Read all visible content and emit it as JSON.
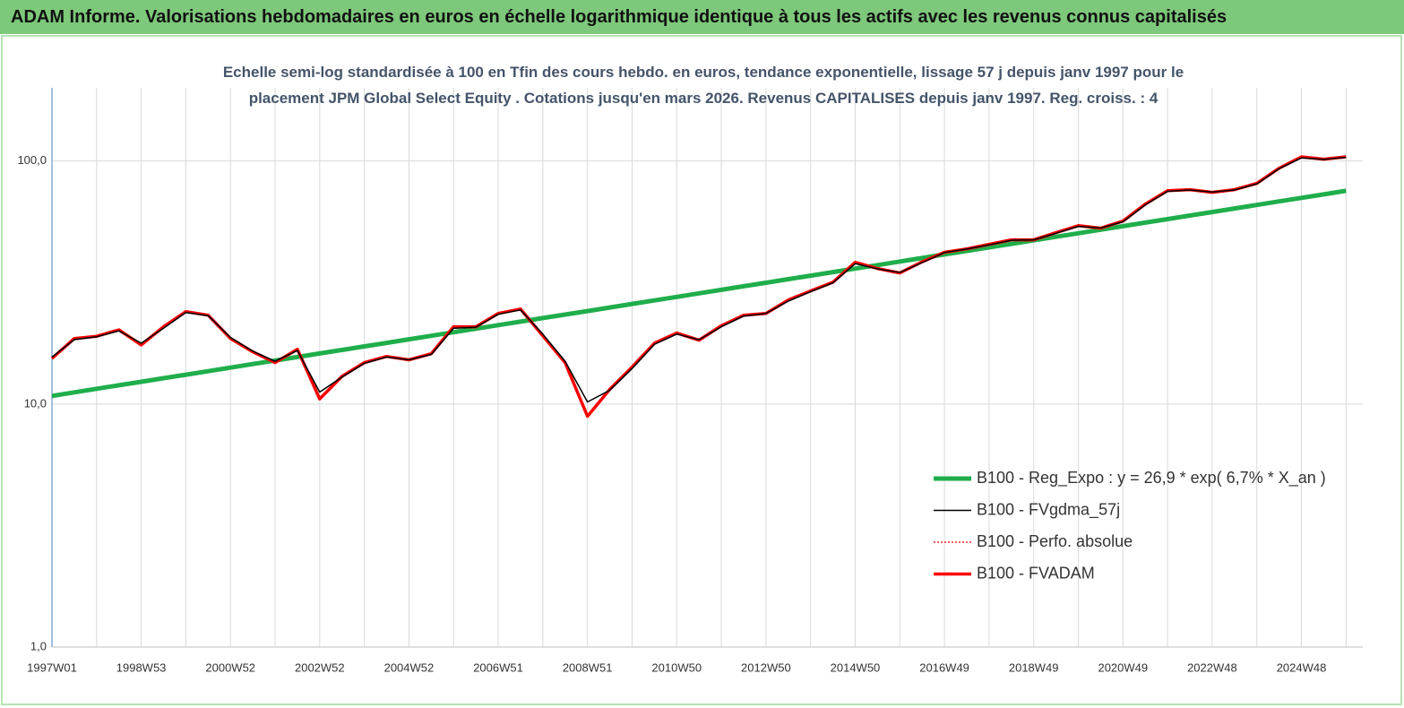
{
  "chart_data": {
    "type": "line",
    "header": "ADAM Informe. Valorisations hebdomadaires en euros en échelle logarithmique identique à tous les actifs avec les revenus connus capitalisés",
    "title": "Echelle semi-log standardisée à 100 en Tfin des cours hebdo. en euros, tendance exponentielle, lissage 57 j depuis janv 1997 pour le placement JPM Global Select Equity . Cotations jusqu'en mars 2026. Revenus CAPITALISES depuis janv 1997. Reg. croiss. : 4",
    "log_scale": true,
    "grid": true,
    "legend": "lower right",
    "ylim": [
      1,
      200
    ],
    "yticks": [
      {
        "value": 1,
        "label": "1,0"
      },
      {
        "value": 10,
        "label": "10,0"
      },
      {
        "value": 100,
        "label": "100,0"
      }
    ],
    "categories": [
      "1997W01",
      null,
      null,
      null,
      "1998W53",
      null,
      null,
      null,
      "2000W52",
      null,
      null,
      null,
      "2002W52",
      null,
      null,
      null,
      "2004W52",
      null,
      null,
      null,
      "2006W51",
      null,
      null,
      null,
      "2008W51",
      null,
      null,
      null,
      "2010W50",
      null,
      null,
      null,
      "2012W50",
      null,
      null,
      null,
      "2014W50",
      null,
      null,
      null,
      "2016W49",
      null,
      null,
      null,
      "2018W49",
      null,
      null,
      null,
      "2020W49",
      null,
      null,
      null,
      "2022W48",
      null,
      null,
      null,
      "2024W48",
      null,
      null
    ],
    "series": [
      {
        "name": "B100 - Reg_Expo : y = 26,9 * exp( 6,7% * X_an )",
        "color": "#1fae4b",
        "width": 5,
        "dash": "none",
        "values": [
          10.8,
          11.17,
          11.55,
          11.94,
          12.35,
          12.77,
          13.2,
          13.65,
          14.12,
          14.6,
          15.1,
          15.61,
          16.14,
          16.69,
          17.26,
          17.85,
          18.46,
          19.09,
          19.74,
          20.41,
          21.11,
          21.83,
          22.57,
          23.34,
          24.13,
          24.96,
          25.81,
          26.69,
          27.59,
          28.53,
          29.51,
          30.51,
          31.55,
          32.63,
          33.74,
          34.89,
          36.07,
          37.3,
          38.57,
          39.89,
          41.25,
          42.65,
          44.11,
          45.61,
          47.16,
          48.77,
          50.43,
          52.15,
          53.93,
          55.76,
          57.66,
          59.63,
          61.66,
          63.76,
          65.93,
          68.18,
          70.5,
          72.9,
          75.39
        ]
      },
      {
        "name": "B100 - FVgdma_57j",
        "color": "#000000",
        "width": 1.5,
        "dash": "none",
        "values": [
          15.6,
          18.4,
          18.9,
          20,
          17.8,
          20.5,
          23.8,
          23.1,
          18.8,
          16.5,
          15,
          16.6,
          11.2,
          12.9,
          14.7,
          15.6,
          15.2,
          16,
          20.5,
          20.7,
          23.4,
          24.4,
          19.4,
          15,
          10.2,
          11.4,
          14,
          17.6,
          19.4,
          18.4,
          20.8,
          23,
          23.6,
          26.5,
          29,
          31.5,
          37.8,
          36,
          34.8,
          38.2,
          42,
          43.4,
          45.2,
          47.2,
          47.4,
          50.4,
          53.8,
          53,
          56.2,
          66,
          75,
          76,
          74.5,
          76,
          80.5,
          93,
          103,
          101.5,
          103.5
        ]
      },
      {
        "name": "B100 - Perfo. absolue",
        "color": "#e00000",
        "width": 1.2,
        "dash": "2 2",
        "values": [
          15.4,
          18.6,
          19,
          20.2,
          17.5,
          20.8,
          24,
          23.2,
          18.6,
          16.4,
          14.8,
          16.8,
          10.5,
          13,
          14.8,
          15.7,
          15.2,
          16.1,
          20.8,
          20.8,
          23.6,
          24.6,
          19.1,
          14.8,
          8.9,
          11.5,
          14.2,
          17.8,
          19.6,
          18.3,
          21,
          23.2,
          23.6,
          26.8,
          29.2,
          31.7,
          38.3,
          36.1,
          34.6,
          38.5,
          42.1,
          43.5,
          45.4,
          47.4,
          47.4,
          50.7,
          54.2,
          52.9,
          56.6,
          66.5,
          75.5,
          76.2,
          74.3,
          76.2,
          80.9,
          93.4,
          104,
          101.7,
          104
        ]
      },
      {
        "name": "B100 - FVADAM",
        "color": "#ff0000",
        "width": 3.5,
        "dash": "none",
        "values": [
          15.4,
          18.6,
          19,
          20.2,
          17.5,
          20.8,
          24,
          23.2,
          18.6,
          16.4,
          14.8,
          16.8,
          10.5,
          13,
          14.8,
          15.7,
          15.2,
          16.1,
          20.8,
          20.8,
          23.6,
          24.6,
          19.1,
          14.8,
          8.9,
          11.5,
          14.2,
          17.8,
          19.6,
          18.3,
          21,
          23.2,
          23.6,
          26.8,
          29.2,
          31.7,
          38.3,
          36.1,
          34.6,
          38.5,
          42.1,
          43.5,
          45.4,
          47.4,
          47.4,
          50.7,
          54.2,
          52.9,
          56.6,
          66.5,
          75.5,
          76.2,
          74.3,
          76.2,
          80.9,
          93.4,
          104,
          101.7,
          104
        ]
      }
    ]
  }
}
